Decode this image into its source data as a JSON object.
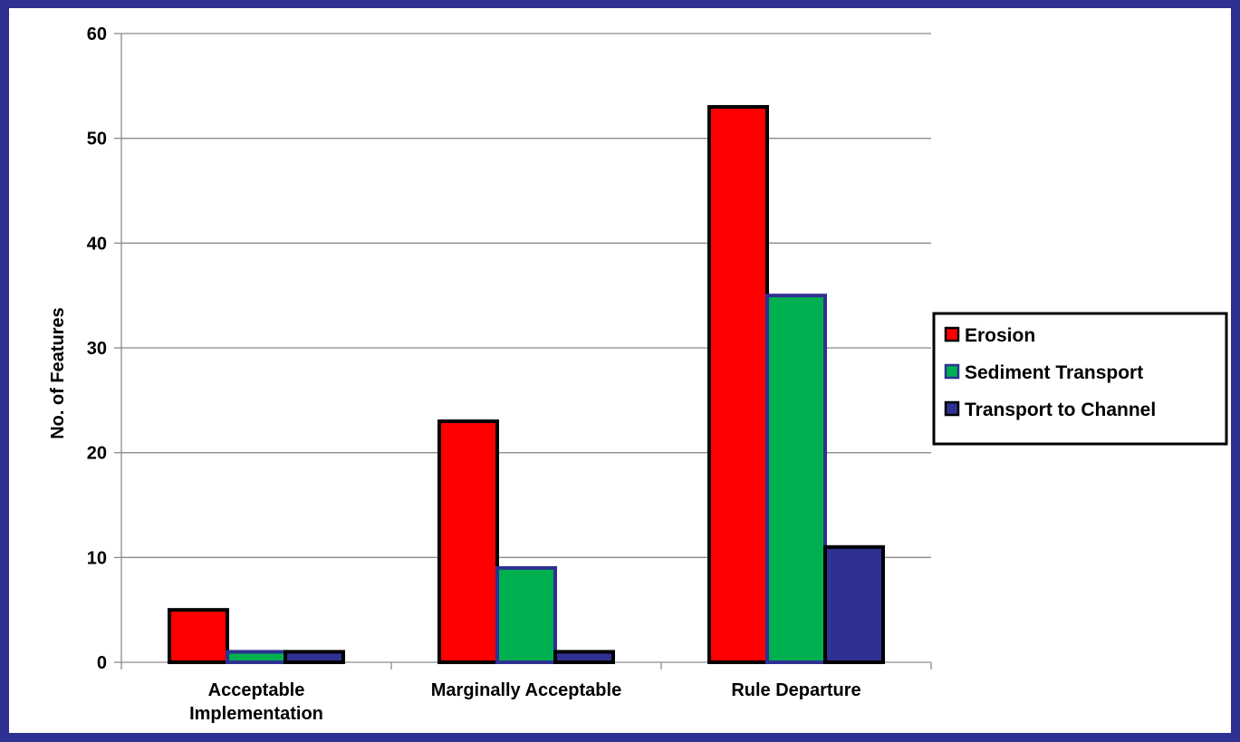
{
  "chart_data": {
    "type": "bar",
    "categories": [
      "Acceptable Implementation",
      "Marginally Acceptable",
      "Rule Departure"
    ],
    "category_lines": [
      [
        "Acceptable",
        "Implementation"
      ],
      [
        "Marginally Acceptable"
      ],
      [
        "Rule Departure"
      ]
    ],
    "series": [
      {
        "name": "Erosion",
        "values": [
          5,
          23,
          53
        ],
        "color": "#FF0000",
        "border": "#000000"
      },
      {
        "name": "Sediment Transport",
        "values": [
          1,
          9,
          35
        ],
        "color": "#00B050",
        "border": "#2E3192"
      },
      {
        "name": "Transport to Channel",
        "values": [
          1,
          1,
          11
        ],
        "color": "#2E3192",
        "border": "#000000"
      }
    ],
    "ylabel": "No. of Features",
    "ylim": [
      0,
      60
    ],
    "yticks": [
      0,
      10,
      20,
      30,
      40,
      50,
      60
    ],
    "grid": true,
    "legend_position": "right",
    "frame_color": "#2E3192"
  }
}
